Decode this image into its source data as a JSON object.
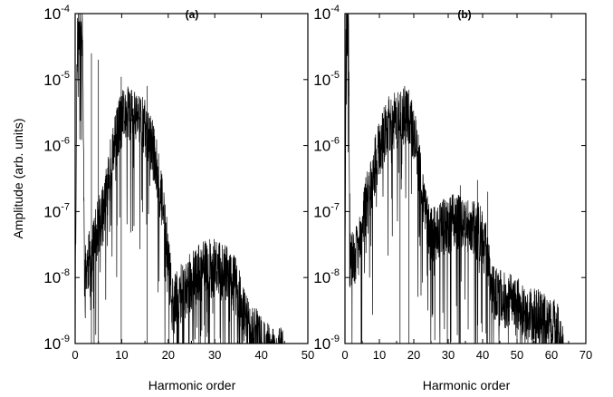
{
  "chart_data": [
    {
      "panel_label": "(a)",
      "type": "line",
      "xlabel": "Harmonic order",
      "ylabel": "Amplitude (arb. units)",
      "xlim": [
        0,
        50
      ],
      "ylim": [
        1e-09,
        0.0001
      ],
      "yscale": "log",
      "grid": false,
      "x_ticks": [
        "0",
        "10",
        "20",
        "30",
        "40",
        "50"
      ],
      "y_ticks": [
        {
          "base": "10",
          "exp": "-9",
          "value": 1e-09
        },
        {
          "base": "10",
          "exp": "-8",
          "value": 1e-08
        },
        {
          "base": "10",
          "exp": "-7",
          "value": 1e-07
        },
        {
          "base": "10",
          "exp": "-6",
          "value": 1e-06
        },
        {
          "base": "10",
          "exp": "-5",
          "value": 1e-05
        },
        {
          "base": "10",
          "exp": "-4",
          "value": 0.0001
        }
      ],
      "spectrum_envelope": {
        "x": [
          0,
          0.4,
          0.8,
          1.2,
          1.6,
          2.0,
          3,
          4,
          5,
          6,
          7,
          8,
          9,
          10,
          11,
          12,
          13,
          14,
          15,
          16,
          17,
          18,
          19,
          20,
          21,
          22,
          23,
          24,
          25,
          26,
          27,
          28,
          29,
          30,
          31,
          32,
          33,
          34,
          35,
          36,
          37,
          38,
          39,
          40,
          41,
          42,
          43,
          44,
          45,
          46,
          47,
          48,
          49,
          50
        ],
        "y": [
          3e-09,
          5e-05,
          0.0001,
          0.0001,
          0.0001,
          2e-08,
          3e-08,
          5e-08,
          1e-07,
          1.5e-07,
          4e-07,
          1.2e-06,
          2.5e-06,
          4e-06,
          5e-06,
          5e-06,
          4.5e-06,
          4e-06,
          3e-06,
          2e-06,
          1.2e-06,
          5e-07,
          1.5e-07,
          3e-08,
          6e-09,
          8e-09,
          1e-08,
          1.2e-08,
          1.5e-08,
          1.8e-08,
          2e-08,
          2.2e-08,
          2.3e-08,
          2.3e-08,
          2.2e-08,
          2e-08,
          1.8e-08,
          1.4e-08,
          1e-08,
          5e-09,
          3.5e-09,
          2.5e-09,
          2e-09,
          1.6e-09,
          1.4e-09,
          1.2e-09,
          1.1e-09,
          1.05e-09,
          1e-09,
          1e-09,
          1e-09,
          1e-09,
          1e-09,
          1e-09
        ]
      },
      "spikes": [
        {
          "x": 3.5,
          "y": 2.5e-05
        },
        {
          "x": 5.0,
          "y": 2e-05
        },
        {
          "x": 9.9,
          "y": 1.1e-05
        },
        {
          "x": 15.5,
          "y": 8e-06
        }
      ]
    },
    {
      "panel_label": "(b)",
      "type": "line",
      "xlabel": "Harmonic order",
      "ylabel": "",
      "xlim": [
        0,
        70
      ],
      "ylim": [
        1e-09,
        0.0001
      ],
      "yscale": "log",
      "grid": false,
      "x_ticks": [
        "0",
        "10",
        "20",
        "30",
        "40",
        "50",
        "60",
        "70"
      ],
      "y_ticks": [
        {
          "base": "10",
          "exp": "-9",
          "value": 1e-09
        },
        {
          "base": "10",
          "exp": "-8",
          "value": 1e-08
        },
        {
          "base": "10",
          "exp": "-7",
          "value": 1e-07
        },
        {
          "base": "10",
          "exp": "-6",
          "value": 1e-06
        },
        {
          "base": "10",
          "exp": "-5",
          "value": 1e-05
        },
        {
          "base": "10",
          "exp": "-4",
          "value": 0.0001
        }
      ],
      "spectrum_envelope": {
        "x": [
          0,
          0.3,
          0.6,
          1.0,
          1.5,
          2,
          4,
          6,
          8,
          10,
          12,
          14,
          16,
          18,
          19,
          20,
          21,
          22,
          23,
          24,
          25,
          27,
          29,
          31,
          33,
          35,
          37,
          39,
          40,
          41,
          42,
          43,
          44,
          46,
          48,
          50,
          52,
          54,
          56,
          58,
          60,
          62,
          63,
          63.5,
          70
        ],
        "y": [
          8e-09,
          0.0001,
          0.0001,
          0.0001,
          3e-08,
          3e-08,
          5e-08,
          2e-07,
          6e-07,
          1.5e-06,
          3e-06,
          4e-06,
          4.5e-06,
          5e-06,
          4e-06,
          2.5e-06,
          1.2e-06,
          5e-07,
          2e-07,
          1e-07,
          8e-08,
          9e-08,
          1e-07,
          1.1e-07,
          1.2e-07,
          1.1e-07,
          1e-07,
          8e-08,
          6e-08,
          4e-08,
          2e-08,
          1.2e-08,
          9e-09,
          8e-09,
          7e-09,
          6e-09,
          5e-09,
          4.5e-09,
          4e-09,
          3.5e-09,
          3e-09,
          2.5e-09,
          1.5e-09,
          1e-09,
          1e-09
        ]
      },
      "spikes": [
        {
          "x": 16.0,
          "y": 6e-06
        },
        {
          "x": 18.6,
          "y": 7e-06
        },
        {
          "x": 33.5,
          "y": 2.5e-07
        },
        {
          "x": 38.5,
          "y": 3e-07
        },
        {
          "x": 41.5,
          "y": 2e-07
        }
      ]
    }
  ]
}
